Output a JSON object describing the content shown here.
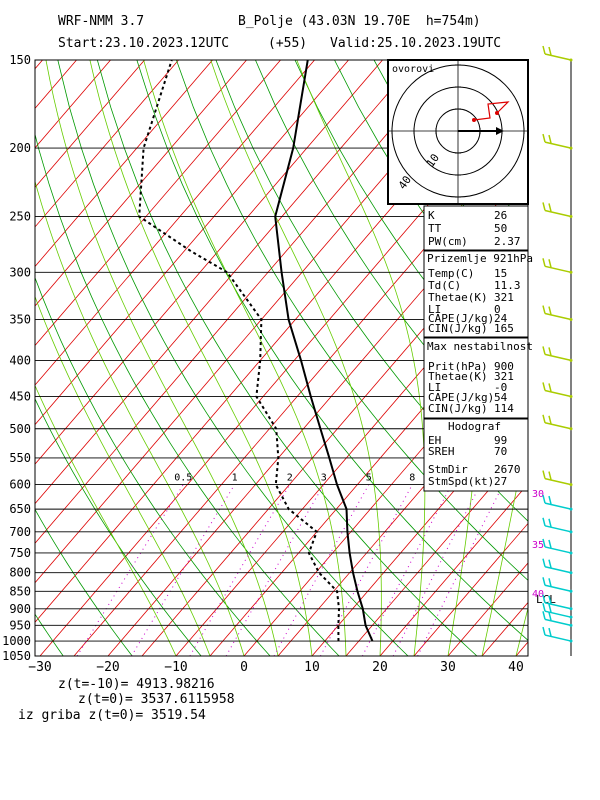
{
  "header": {
    "model": "WRF-NMM 3.7",
    "station": "B_Polje (43.03N 19.70E  h=754m)",
    "start": "Start:23.10.2023.",
    "start_hour": "12UTC",
    "lead": "(+55)",
    "valid": "Valid:25.10.2023.",
    "valid_hour": "19UTC"
  },
  "footer": {
    "line1": "z(t=-10)= 4913.98216",
    "line2": "z(t=0)= 3537.6115958",
    "line3": "iz griba z(t=0)= 3519.54"
  },
  "hodograph_label": "ovorovi",
  "hodograph_rings": [
    "10",
    "40"
  ],
  "panels": {
    "indices": [
      {
        "k": "K",
        "v": "26"
      },
      {
        "k": "TT",
        "v": "50"
      },
      {
        "k": "PW(cm)",
        "v": "2.37"
      }
    ],
    "surface_title": "Prizemlje 921hPa",
    "surface": [
      {
        "k": "Temp(C)",
        "v": "15"
      },
      {
        "k": "Td(C)",
        "v": "11.3"
      },
      {
        "k": "Thetae(K)",
        "v": "321"
      },
      {
        "k": "LI",
        "v": "0"
      },
      {
        "k": "CAPE(J/kg)",
        "v": "24"
      },
      {
        "k": "CIN(J/kg)",
        "v": "165"
      }
    ],
    "maxinst_title": "Max nestabilnost",
    "maxinst": [
      {
        "k": "Prit(hPa)",
        "v": "900"
      },
      {
        "k": "Thetae(K)",
        "v": "321"
      },
      {
        "k": "LI",
        "v": "-0"
      },
      {
        "k": "CAPE(J/kg)",
        "v": "54"
      },
      {
        "k": "CIN(J/kg)",
        "v": "114"
      }
    ],
    "hodo_title": "Hodograf",
    "hodo": [
      {
        "k": "EH",
        "v": "99"
      },
      {
        "k": "SREH",
        "v": "70"
      },
      {
        "k": "StmDir",
        "v": "2670"
      },
      {
        "k": "StmSpd(kt)",
        "v": "27"
      }
    ]
  },
  "lcl_label": "LCL",
  "colors": {
    "isotherm": "#dd0000",
    "dry_adiabat": "#009900",
    "moist_adiabat": "#66cc00",
    "mixing_ratio": "#cc00cc",
    "wind_barb": "#00cccc",
    "temperature": "#000000",
    "dewpoint": "#000000"
  },
  "chart_data": {
    "type": "skew-t log-p",
    "xlabel": "",
    "ylabel": "",
    "xlim": [
      -30,
      40
    ],
    "ylim": [
      1050,
      150
    ],
    "pressure_ticks": [
      1050,
      1000,
      950,
      900,
      850,
      800,
      750,
      700,
      650,
      600,
      550,
      500,
      450,
      400,
      350,
      300,
      250,
      200,
      150
    ],
    "temperature_ticks": [
      -30,
      -20,
      -10,
      0,
      10,
      20,
      30,
      40
    ],
    "mixing_ratio_labels": [
      "0.5",
      "1",
      "2",
      "3",
      "5",
      "8"
    ],
    "theta_e_labels": [
      "30",
      "35",
      "40"
    ],
    "series": [
      {
        "name": "",
        "kind": "temperature",
        "points": [
          [
            1000,
            17.0
          ],
          [
            950,
            14.0
          ],
          [
            900,
            11.5
          ],
          [
            850,
            8.5
          ],
          [
            800,
            5.5
          ],
          [
            750,
            2.5
          ],
          [
            700,
            -0.5
          ],
          [
            650,
            -3.5
          ],
          [
            600,
            -8.0
          ],
          [
            550,
            -12.5
          ],
          [
            500,
            -17.5
          ],
          [
            450,
            -23.0
          ],
          [
            400,
            -29.0
          ],
          [
            350,
            -36.0
          ],
          [
            300,
            -43.0
          ],
          [
            250,
            -51.0
          ],
          [
            200,
            -57.0
          ],
          [
            150,
            -66.0
          ]
        ]
      },
      {
        "name": "",
        "kind": "dewpoint",
        "points": [
          [
            1000,
            12.0
          ],
          [
            950,
            10.0
          ],
          [
            900,
            8.0
          ],
          [
            850,
            5.5
          ],
          [
            800,
            0.5
          ],
          [
            750,
            -3.5
          ],
          [
            700,
            -5.0
          ],
          [
            650,
            -12.0
          ],
          [
            600,
            -17.0
          ],
          [
            550,
            -20.0
          ],
          [
            500,
            -24.0
          ],
          [
            450,
            -31.0
          ],
          [
            400,
            -35.0
          ],
          [
            350,
            -40.0
          ],
          [
            300,
            -51.0
          ],
          [
            280,
            -59.0
          ],
          [
            250,
            -71.0
          ],
          [
            200,
            -79.0
          ],
          [
            150,
            -86.0
          ]
        ]
      }
    ],
    "wind_profile_pressures": [
      1000,
      950,
      925,
      900,
      850,
      800,
      750,
      700,
      650,
      600,
      500,
      450,
      400,
      350,
      300,
      250,
      200,
      150
    ]
  }
}
